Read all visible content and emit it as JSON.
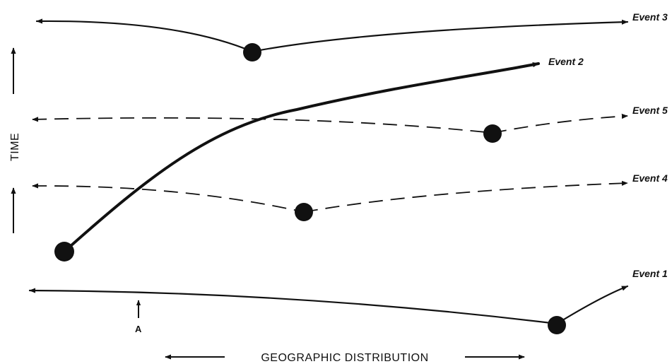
{
  "events": {
    "event1": {
      "label": "Event 1"
    },
    "event2": {
      "label": "Event 2"
    },
    "event3": {
      "label": "Event 3"
    },
    "event4": {
      "label": "Event 4"
    },
    "event5": {
      "label": "Event 5"
    }
  },
  "axes": {
    "y_label": "TIME",
    "x_label": "GEOGRAPHIC DISTRIBUTION"
  },
  "marker": {
    "label": "A"
  }
}
